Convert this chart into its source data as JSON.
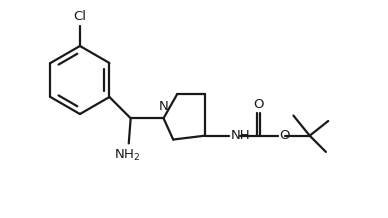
{
  "bg_color": "#ffffff",
  "line_color": "#1a1a1a",
  "line_width": 1.6,
  "figsize": [
    3.88,
    2.18
  ],
  "dpi": 100,
  "xlim": [
    0,
    10
  ],
  "ylim": [
    0,
    5.6
  ]
}
